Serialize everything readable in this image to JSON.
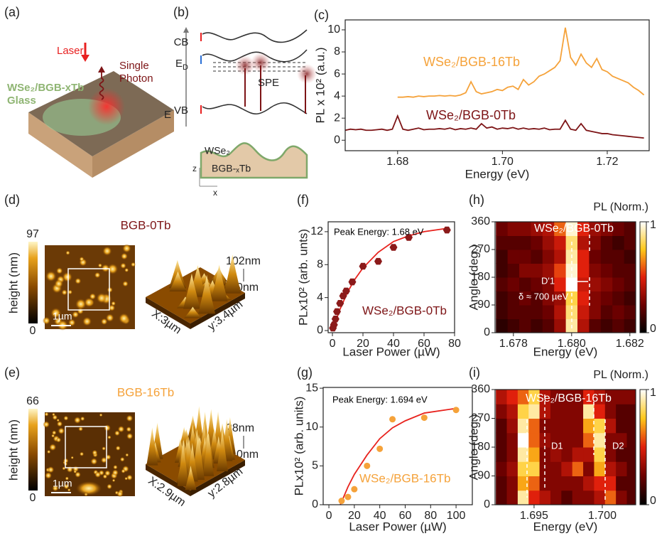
{
  "panels": [
    "(a)",
    "(b)",
    "(c)",
    "(d)",
    "(e)",
    "(f)",
    "(g)",
    "(h)",
    "(i)"
  ],
  "schematic": {
    "laser": "Laser",
    "photon": [
      "Single",
      "Photon"
    ],
    "sample": [
      "WSe₂/BGB-xTb",
      "Glass"
    ]
  },
  "band_diagram": {
    "cb": "CB",
    "ed": [
      "E",
      "D"
    ],
    "vb": "VB",
    "energy": "E",
    "spe": "SPE",
    "top_layer": "WSe₂",
    "substrate": "BGB-ₓTb",
    "axis_z": "z",
    "axis_x": "x"
  },
  "afm": [
    {
      "title": "BGB-0Tb",
      "colorbar_label": "height (nm)",
      "colorbar_max": 97,
      "colorbar_min": 0,
      "scale_bar": "1µm",
      "z_max": "102nm",
      "z_min": "0nm",
      "x_size": "X:3µm",
      "y_size": "y:3.4µm"
    },
    {
      "title": "BGB-16Tb",
      "colorbar_label": "height (nm)",
      "colorbar_max": 66,
      "colorbar_min": 0,
      "scale_bar": "1µm",
      "z_max": "28nm",
      "z_min": "0nm",
      "x_size": "X:2.9µm",
      "y_size": "y:2.8µm"
    }
  ],
  "chart_data": [
    {
      "type": "line",
      "ylabel": "PL x 10² (a.u.)",
      "xlabel": "Energy (eV)",
      "x": [
        1.67,
        1.671,
        1.672,
        1.673,
        1.674,
        1.675,
        1.676,
        1.677,
        1.678,
        1.679,
        1.68,
        1.681,
        1.682,
        1.683,
        1.684,
        1.685,
        1.686,
        1.687,
        1.688,
        1.689,
        1.69,
        1.691,
        1.692,
        1.693,
        1.694,
        1.695,
        1.696,
        1.697,
        1.698,
        1.699,
        1.7,
        1.701,
        1.702,
        1.703,
        1.704,
        1.705,
        1.706,
        1.707,
        1.708,
        1.709,
        1.71,
        1.711,
        1.712,
        1.713,
        1.714,
        1.715,
        1.716,
        1.717,
        1.718,
        1.719,
        1.72,
        1.721,
        1.722,
        1.723,
        1.724,
        1.725,
        1.726,
        1.727
      ],
      "series": [
        {
          "color": "#f5a23a",
          "values": [
            null,
            null,
            null,
            null,
            null,
            null,
            null,
            null,
            null,
            null,
            3.9,
            3.9,
            3.95,
            3.9,
            4.0,
            3.95,
            4.0,
            4.0,
            4.05,
            4.0,
            4.05,
            4.0,
            4.1,
            4.3,
            5.3,
            4.4,
            4.2,
            4.3,
            4.4,
            4.6,
            4.5,
            4.8,
            4.9,
            4.6,
            5.5,
            5.0,
            5.3,
            5.8,
            6.0,
            6.3,
            6.6,
            7.2,
            10.2,
            7.5,
            6.8,
            7.8,
            7.0,
            6.6,
            7.4,
            6.4,
            6.2,
            5.8,
            5.6,
            5.4,
            5.2,
            4.8,
            4.5,
            4.1
          ]
        },
        {
          "color": "#7d1416",
          "values": [
            0.9,
            1.0,
            0.95,
            1.0,
            0.9,
            0.9,
            0.95,
            1.0,
            0.9,
            1.0,
            2.2,
            1.0,
            0.9,
            1.0,
            1.1,
            0.95,
            1.0,
            1.0,
            1.05,
            1.0,
            1.1,
            0.95,
            1.05,
            1.0,
            1.1,
            1.0,
            1.5,
            1.1,
            1.2,
            1.0,
            1.1,
            1.05,
            1.15,
            1.0,
            1.1,
            1.0,
            1.05,
            1.0,
            1.1,
            0.95,
            1.0,
            1.0,
            1.8,
            1.0,
            0.9,
            1.5,
            0.9,
            0.8,
            0.7,
            0.6,
            0.6,
            0.5,
            0.45,
            0.4,
            0.35,
            0.3,
            0.25,
            0.2
          ]
        }
      ],
      "xlim": [
        1.67,
        1.728
      ],
      "ylim": [
        -0.95,
        10.9
      ],
      "xticks": [
        1.68,
        {
          "value": 1.7,
          "label": "1.70"
        },
        1.72
      ],
      "yticks": [
        0,
        2,
        4,
        6,
        8,
        10
      ],
      "annotations": [
        "WSe₂/BGB-16Tb",
        "WSe₂/BGB-0Tb"
      ],
      "annotation_colors": [
        "#f5a23a",
        "#7d1416"
      ]
    },
    {
      "type": "scatter",
      "ylabel": "PLx10² (arb. unts)",
      "xlabel": "Laser Power (µW)",
      "series": [
        {
          "color": "#8b1a1a",
          "marker": "hexagon",
          "x": [
            0.3,
            1,
            2,
            3,
            5,
            7,
            9,
            13,
            20,
            30,
            40,
            50,
            75
          ],
          "values": [
            0.3,
            0.7,
            1.4,
            2.3,
            3.3,
            4.2,
            4.8,
            5.9,
            7.8,
            8.4,
            10.1,
            11.3,
            12.2
          ]
        },
        {
          "color": "#e8221d",
          "style": "line",
          "x": [
            0,
            5,
            10,
            15,
            20,
            30,
            40,
            50,
            60,
            75
          ],
          "values": [
            0,
            2.6,
            4.7,
            6.3,
            7.6,
            9.5,
            10.8,
            11.5,
            12.0,
            12.4
          ]
        }
      ],
      "xlim": [
        -2.8,
        80
      ],
      "ylim": [
        -0.26,
        13.2
      ],
      "xticks": [
        0,
        20,
        40,
        60,
        80
      ],
      "yticks": [
        0,
        4,
        8,
        12
      ],
      "annotations": [
        "Peak Energy: 1.68 eV",
        "WSe₂/BGB-0Tb"
      ],
      "annotation_colors": [
        "#000000",
        "#7d1416"
      ]
    },
    {
      "type": "scatter",
      "ylabel": "PLx10² (arb. units)",
      "xlabel": "Laser Power (µW)",
      "series": [
        {
          "color": "#f5a23a",
          "marker": "circle",
          "x": [
            10,
            15,
            20,
            30,
            40,
            50,
            75,
            100
          ],
          "values": [
            0.5,
            1.0,
            2.0,
            5.0,
            7.2,
            11.0,
            11.2,
            12.2
          ]
        },
        {
          "color": "#e8221d",
          "style": "line",
          "x": [
            9,
            15,
            20,
            30,
            40,
            50,
            60,
            75,
            100
          ],
          "values": [
            0,
            2.3,
            3.9,
            6.4,
            8.5,
            9.9,
            10.8,
            11.8,
            12.4
          ]
        }
      ],
      "xlim": [
        -4.5,
        112.8
      ],
      "ylim": [
        0,
        15.1
      ],
      "xticks": [
        0,
        20,
        40,
        60,
        80,
        100
      ],
      "yticks": [
        0,
        5,
        10,
        15
      ],
      "annotations": [
        "Peak Energy: 1.694 eV",
        "WSe₂/BGB-16Tb"
      ],
      "annotation_colors": [
        "#000000",
        "#f5a23a"
      ]
    },
    {
      "type": "heatmap",
      "ylabel": "Angle (deg.)",
      "xlabel": "Energy (eV)",
      "colorbar_label": "PL (Norm.)",
      "x": [
        1.6776,
        1.678,
        1.6784,
        1.6788,
        1.6792,
        1.6796,
        1.68,
        1.6804,
        1.6808,
        1.6812,
        1.6816,
        1.682
      ],
      "y": [
        22.5,
        67.5,
        112.5,
        157.5,
        202.5,
        247.5,
        292.5,
        337.5
      ],
      "values": [
        [
          0.1,
          0.15,
          0.2,
          0.15,
          0.2,
          0.35,
          0.9,
          0.4,
          0.2,
          0.15,
          0.2,
          0.15
        ],
        [
          0.15,
          0.2,
          0.2,
          0.2,
          0.25,
          0.4,
          0.85,
          0.45,
          0.3,
          0.2,
          0.25,
          0.2
        ],
        [
          0.15,
          0.2,
          0.25,
          0.2,
          0.3,
          0.35,
          0.8,
          0.5,
          0.3,
          0.25,
          0.2,
          0.15
        ],
        [
          0.2,
          0.25,
          0.2,
          0.25,
          0.3,
          0.5,
          1.0,
          0.45,
          0.35,
          0.3,
          0.25,
          0.2
        ],
        [
          0.15,
          0.2,
          0.3,
          0.3,
          0.35,
          0.55,
          0.95,
          0.5,
          0.3,
          0.25,
          0.2,
          0.2
        ],
        [
          0.15,
          0.25,
          0.25,
          0.2,
          0.3,
          0.4,
          0.9,
          0.5,
          0.25,
          0.2,
          0.2,
          0.15
        ],
        [
          0.2,
          0.2,
          0.2,
          0.25,
          0.35,
          0.45,
          0.85,
          0.4,
          0.3,
          0.2,
          0.15,
          0.2
        ],
        [
          0.25,
          0.3,
          0.3,
          0.35,
          0.4,
          0.6,
          0.95,
          0.5,
          0.35,
          0.3,
          0.25,
          0.2
        ]
      ],
      "xlim": [
        1.67737,
        1.6822
      ],
      "ylim": [
        0,
        360
      ],
      "xticks": [
        1.678,
        {
          "value": 1.68,
          "label": "1.680"
        },
        1.682
      ],
      "yticks": [
        0,
        90,
        180,
        270,
        360
      ],
      "zlim": [
        0,
        1
      ],
      "zticks": [
        0,
        1
      ],
      "colormap": [
        "#000000",
        "#6b0000",
        "#e0200c",
        "#ffc81a",
        "#ffffff"
      ],
      "annotations": [
        "WSe₂/BGB-0Tb",
        "D'1",
        "δ ≈ 700 µeV"
      ],
      "annotation_colors": [
        "#ffffff",
        "#ffffff",
        "#ffffff"
      ]
    },
    {
      "type": "heatmap",
      "ylabel": "Angle (deg.)",
      "xlabel": "Energy (eV)",
      "colorbar_label": "PL (Norm.)",
      "x": [
        1.6926,
        1.6934,
        1.6942,
        1.695,
        1.6958,
        1.6966,
        1.6974,
        1.6982,
        1.699,
        1.6998,
        1.7006,
        1.7014,
        1.7022
      ],
      "y": [
        22.5,
        67.5,
        112.5,
        157.5,
        202.5,
        247.5,
        292.5,
        337.5
      ],
      "values": [
        [
          0.2,
          0.3,
          0.9,
          0.5,
          0.4,
          0.3,
          0.2,
          0.3,
          0.3,
          0.4,
          0.6,
          0.3,
          0.2
        ],
        [
          0.2,
          0.3,
          0.7,
          0.6,
          0.3,
          0.3,
          0.3,
          0.3,
          0.4,
          0.5,
          0.5,
          0.2,
          0.2
        ],
        [
          0.25,
          0.35,
          0.8,
          0.8,
          0.3,
          0.3,
          0.4,
          0.6,
          0.3,
          0.7,
          0.4,
          0.3,
          0.2
        ],
        [
          0.2,
          0.3,
          0.9,
          0.7,
          0.3,
          0.35,
          0.3,
          0.4,
          0.4,
          0.8,
          0.3,
          0.2,
          0.2
        ],
        [
          0.2,
          0.3,
          1.0,
          0.6,
          0.35,
          0.3,
          0.3,
          0.3,
          0.6,
          0.9,
          0.3,
          0.3,
          0.2
        ],
        [
          0.2,
          0.35,
          0.9,
          0.6,
          0.3,
          0.3,
          0.3,
          0.3,
          0.7,
          0.8,
          0.4,
          0.2,
          0.2
        ],
        [
          0.3,
          0.4,
          0.8,
          0.9,
          0.4,
          0.3,
          0.3,
          0.3,
          0.9,
          0.5,
          0.3,
          0.2,
          0.2
        ],
        [
          0.4,
          0.5,
          0.6,
          0.8,
          0.4,
          0.3,
          0.3,
          0.3,
          0.5,
          0.4,
          0.3,
          0.3,
          0.3
        ]
      ],
      "xlim": [
        1.69214,
        1.70245
      ],
      "ylim": [
        0,
        360
      ],
      "xticks": [
        1.695,
        {
          "value": 1.7,
          "label": "1.700"
        }
      ],
      "yticks": [
        0,
        90,
        180,
        270,
        360
      ],
      "zlim": [
        0,
        1
      ],
      "zticks": [
        0,
        1
      ],
      "colormap": [
        "#000000",
        "#6b0000",
        "#e0200c",
        "#ffc81a",
        "#ffffff"
      ],
      "annotations": [
        "WSe₂/BGB-16Tb",
        "D1",
        "D2"
      ],
      "annotation_colors": [
        "#ffffff",
        "#ffffff",
        "#ffffff"
      ]
    }
  ]
}
